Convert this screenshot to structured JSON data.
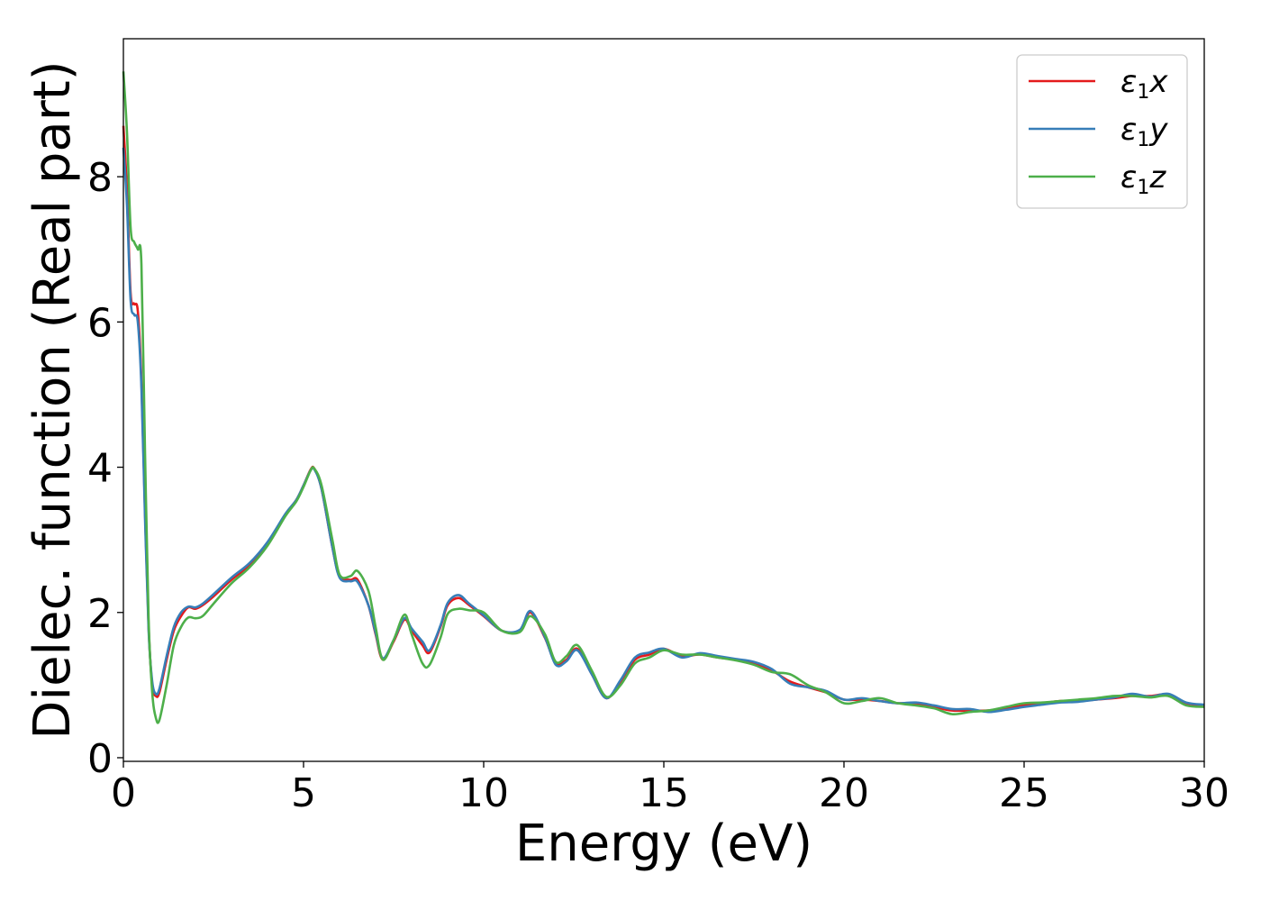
{
  "chart_data": {
    "type": "line",
    "title": "",
    "xlabel": "Energy (eV)",
    "ylabel": "Dielec. function (Real part)",
    "xlim": [
      0,
      30
    ],
    "ylim": [
      -0.05,
      9.9
    ],
    "xticks": [
      0,
      5,
      10,
      15,
      20,
      25,
      30
    ],
    "yticks": [
      0,
      2,
      4,
      6,
      8
    ],
    "grid": false,
    "legend_position": "top-right",
    "series": [
      {
        "name": "ε1x",
        "legend_main": "ε",
        "legend_sub": "1",
        "legend_axis": "x",
        "color": "#e41a1c",
        "x": [
          0,
          0.1,
          0.2,
          0.3,
          0.4,
          0.5,
          0.6,
          0.7,
          0.8,
          0.9,
          1.0,
          1.2,
          1.4,
          1.6,
          1.8,
          2.0,
          2.2,
          2.5,
          3.0,
          3.5,
          4.0,
          4.5,
          4.8,
          5.0,
          5.2,
          5.3,
          5.5,
          5.8,
          6.0,
          6.3,
          6.5,
          6.8,
          7.0,
          7.2,
          7.5,
          7.8,
          8.0,
          8.3,
          8.5,
          8.8,
          9.0,
          9.3,
          9.6,
          10.0,
          10.5,
          11.0,
          11.3,
          11.7,
          12.0,
          12.3,
          12.6,
          13.0,
          13.4,
          13.8,
          14.2,
          14.6,
          15.0,
          15.5,
          16.0,
          16.5,
          17.0,
          17.5,
          18.0,
          18.5,
          19.0,
          19.5,
          20.0,
          20.5,
          21.0,
          21.5,
          22.0,
          22.5,
          23.0,
          23.5,
          24.0,
          24.5,
          25.0,
          25.5,
          26.0,
          26.5,
          27.0,
          27.5,
          28.0,
          28.5,
          29.0,
          29.5,
          30.0
        ],
        "y": [
          8.7,
          7.8,
          6.4,
          6.25,
          6.15,
          5.2,
          3.4,
          1.8,
          1.0,
          0.85,
          0.9,
          1.35,
          1.75,
          1.95,
          2.07,
          2.05,
          2.1,
          2.22,
          2.45,
          2.65,
          2.95,
          3.35,
          3.55,
          3.75,
          3.97,
          3.98,
          3.7,
          2.9,
          2.5,
          2.45,
          2.45,
          2.1,
          1.7,
          1.35,
          1.6,
          1.9,
          1.75,
          1.55,
          1.45,
          1.8,
          2.1,
          2.2,
          2.1,
          1.95,
          1.75,
          1.75,
          2.0,
          1.65,
          1.3,
          1.35,
          1.5,
          1.15,
          0.82,
          1.05,
          1.35,
          1.42,
          1.5,
          1.4,
          1.42,
          1.38,
          1.35,
          1.3,
          1.2,
          1.05,
          0.97,
          0.9,
          0.8,
          0.8,
          0.78,
          0.75,
          0.75,
          0.7,
          0.65,
          0.65,
          0.65,
          0.68,
          0.72,
          0.75,
          0.78,
          0.78,
          0.8,
          0.82,
          0.85,
          0.85,
          0.87,
          0.75,
          0.72
        ]
      },
      {
        "name": "ε1y",
        "legend_main": "ε",
        "legend_sub": "1",
        "legend_axis": "y",
        "color": "#377eb8",
        "x": [
          0,
          0.1,
          0.2,
          0.3,
          0.4,
          0.5,
          0.6,
          0.7,
          0.8,
          0.9,
          1.0,
          1.2,
          1.4,
          1.6,
          1.8,
          2.0,
          2.2,
          2.5,
          3.0,
          3.5,
          4.0,
          4.5,
          4.8,
          5.0,
          5.2,
          5.3,
          5.5,
          5.8,
          6.0,
          6.3,
          6.5,
          6.8,
          7.0,
          7.2,
          7.5,
          7.8,
          8.0,
          8.3,
          8.5,
          8.8,
          9.0,
          9.3,
          9.6,
          10.0,
          10.5,
          11.0,
          11.3,
          11.7,
          12.0,
          12.3,
          12.6,
          13.0,
          13.4,
          13.8,
          14.2,
          14.6,
          15.0,
          15.5,
          16.0,
          16.5,
          17.0,
          17.5,
          18.0,
          18.5,
          19.0,
          19.5,
          20.0,
          20.5,
          21.0,
          21.5,
          22.0,
          22.5,
          23.0,
          23.5,
          24.0,
          24.5,
          25.0,
          25.5,
          26.0,
          26.5,
          27.0,
          27.5,
          28.0,
          28.5,
          29.0,
          29.5,
          30.0
        ],
        "y": [
          8.4,
          7.6,
          6.3,
          6.1,
          6.0,
          5.1,
          3.3,
          1.75,
          1.05,
          0.88,
          0.95,
          1.4,
          1.8,
          2.0,
          2.08,
          2.07,
          2.12,
          2.25,
          2.48,
          2.68,
          2.97,
          3.36,
          3.55,
          3.75,
          3.96,
          3.97,
          3.7,
          2.9,
          2.48,
          2.43,
          2.42,
          2.1,
          1.72,
          1.37,
          1.62,
          1.92,
          1.78,
          1.6,
          1.48,
          1.82,
          2.13,
          2.24,
          2.12,
          1.96,
          1.75,
          1.76,
          2.02,
          1.66,
          1.28,
          1.33,
          1.48,
          1.15,
          0.82,
          1.07,
          1.38,
          1.45,
          1.5,
          1.38,
          1.44,
          1.4,
          1.36,
          1.32,
          1.22,
          1.02,
          0.97,
          0.92,
          0.8,
          0.82,
          0.78,
          0.75,
          0.76,
          0.72,
          0.67,
          0.67,
          0.63,
          0.66,
          0.7,
          0.73,
          0.76,
          0.77,
          0.8,
          0.83,
          0.88,
          0.84,
          0.88,
          0.76,
          0.73
        ]
      },
      {
        "name": "ε1z",
        "legend_main": "ε",
        "legend_sub": "1",
        "legend_axis": "z",
        "color": "#4daf4a",
        "x": [
          0,
          0.1,
          0.2,
          0.3,
          0.4,
          0.5,
          0.6,
          0.7,
          0.8,
          0.9,
          1.0,
          1.2,
          1.4,
          1.6,
          1.8,
          2.0,
          2.2,
          2.5,
          3.0,
          3.5,
          4.0,
          4.5,
          4.8,
          5.0,
          5.2,
          5.3,
          5.5,
          5.8,
          6.0,
          6.3,
          6.5,
          6.8,
          7.0,
          7.2,
          7.5,
          7.8,
          8.0,
          8.3,
          8.5,
          8.8,
          9.0,
          9.3,
          9.6,
          10.0,
          10.5,
          11.0,
          11.3,
          11.7,
          12.0,
          12.3,
          12.6,
          13.0,
          13.4,
          13.8,
          14.2,
          14.6,
          15.0,
          15.5,
          16.0,
          16.5,
          17.0,
          17.5,
          18.0,
          18.5,
          19.0,
          19.5,
          20.0,
          20.5,
          21.0,
          21.5,
          22.0,
          22.5,
          23.0,
          23.5,
          24.0,
          24.5,
          25.0,
          25.5,
          26.0,
          26.5,
          27.0,
          27.5,
          28.0,
          28.5,
          29.0,
          29.5,
          30.0
        ],
        "y": [
          9.45,
          8.6,
          7.3,
          7.1,
          7.0,
          6.8,
          4.2,
          1.9,
          0.9,
          0.55,
          0.52,
          1.0,
          1.55,
          1.8,
          1.93,
          1.92,
          1.95,
          2.12,
          2.4,
          2.62,
          2.92,
          3.33,
          3.53,
          3.73,
          3.96,
          3.98,
          3.75,
          3.0,
          2.52,
          2.5,
          2.57,
          2.3,
          1.8,
          1.35,
          1.62,
          1.97,
          1.7,
          1.3,
          1.28,
          1.65,
          1.98,
          2.05,
          2.03,
          2.0,
          1.75,
          1.73,
          1.95,
          1.7,
          1.32,
          1.4,
          1.55,
          1.2,
          0.84,
          1.0,
          1.3,
          1.38,
          1.48,
          1.42,
          1.42,
          1.38,
          1.34,
          1.28,
          1.18,
          1.15,
          1.0,
          0.9,
          0.75,
          0.78,
          0.82,
          0.75,
          0.72,
          0.68,
          0.6,
          0.63,
          0.65,
          0.7,
          0.75,
          0.76,
          0.78,
          0.8,
          0.82,
          0.85,
          0.85,
          0.83,
          0.85,
          0.72,
          0.7
        ]
      }
    ]
  }
}
